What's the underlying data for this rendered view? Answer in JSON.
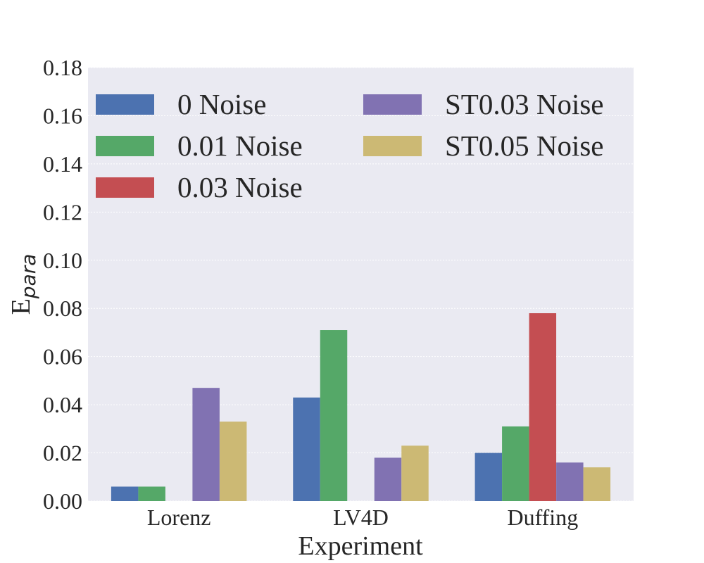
{
  "chart_data": {
    "type": "bar",
    "title": "",
    "xlabel": "Experiment",
    "ylabel": "E",
    "ylabel_subscript": "para",
    "categories": [
      "Lorenz",
      "LV4D",
      "Duffing"
    ],
    "series": [
      {
        "name": "0 Noise",
        "color": "#4c72b0",
        "values": [
          0.006,
          0.043,
          0.02
        ]
      },
      {
        "name": "0.01 Noise",
        "color": "#55a868",
        "values": [
          0.006,
          0.071,
          0.031
        ]
      },
      {
        "name": "0.03 Noise",
        "color": "#c44e52",
        "values": [
          0.0,
          0.0,
          0.078
        ]
      },
      {
        "name": "ST0.03 Noise",
        "color": "#8172b2",
        "values": [
          0.047,
          0.018,
          0.016
        ]
      },
      {
        "name": "ST0.05 Noise",
        "color": "#ccb974",
        "values": [
          0.033,
          0.023,
          0.014
        ]
      }
    ],
    "ylim": [
      0,
      0.18
    ],
    "yticks": [
      "0.00",
      "0.02",
      "0.04",
      "0.06",
      "0.08",
      "0.10",
      "0.12",
      "0.14",
      "0.16",
      "0.18"
    ],
    "grid": true,
    "legend_position": "top-left",
    "background_color": "#eaeaf2"
  }
}
